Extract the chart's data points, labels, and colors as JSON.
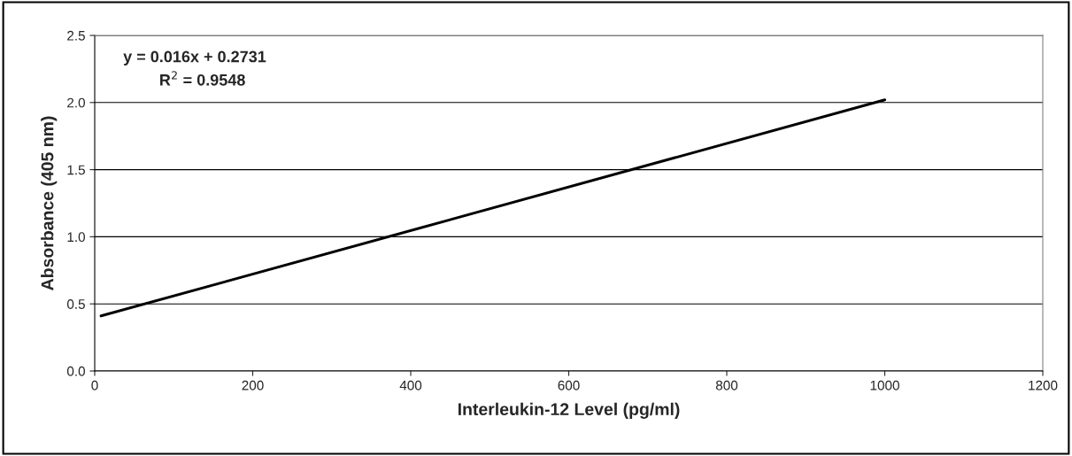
{
  "chart_data": {
    "type": "line",
    "xlabel": "Interleukin-12 Level (pg/ml)",
    "ylabel": "Absorbance (405 nm)",
    "annotations": [
      "y = 0.016x + 0.2731",
      "R$^{2}$ = 0.9548"
    ],
    "series": [
      {
        "color": "#000000",
        "x": [
          8,
          1000
        ],
        "values": [
          0.41,
          2.02
        ]
      }
    ],
    "xlim": [
      0,
      1200
    ],
    "xticks": [
      0,
      200,
      400,
      600,
      800,
      1000,
      1200
    ],
    "ylim": [
      0,
      2.5
    ],
    "yticks": [
      {
        "value": 0,
        "label": "0.0"
      },
      0.5,
      {
        "value": 1,
        "label": "1.0"
      },
      1.5,
      {
        "value": 2,
        "label": "2.0"
      },
      2.5
    ],
    "grid": "y",
    "legend": false,
    "marker": "none",
    "line_style": "solid"
  }
}
